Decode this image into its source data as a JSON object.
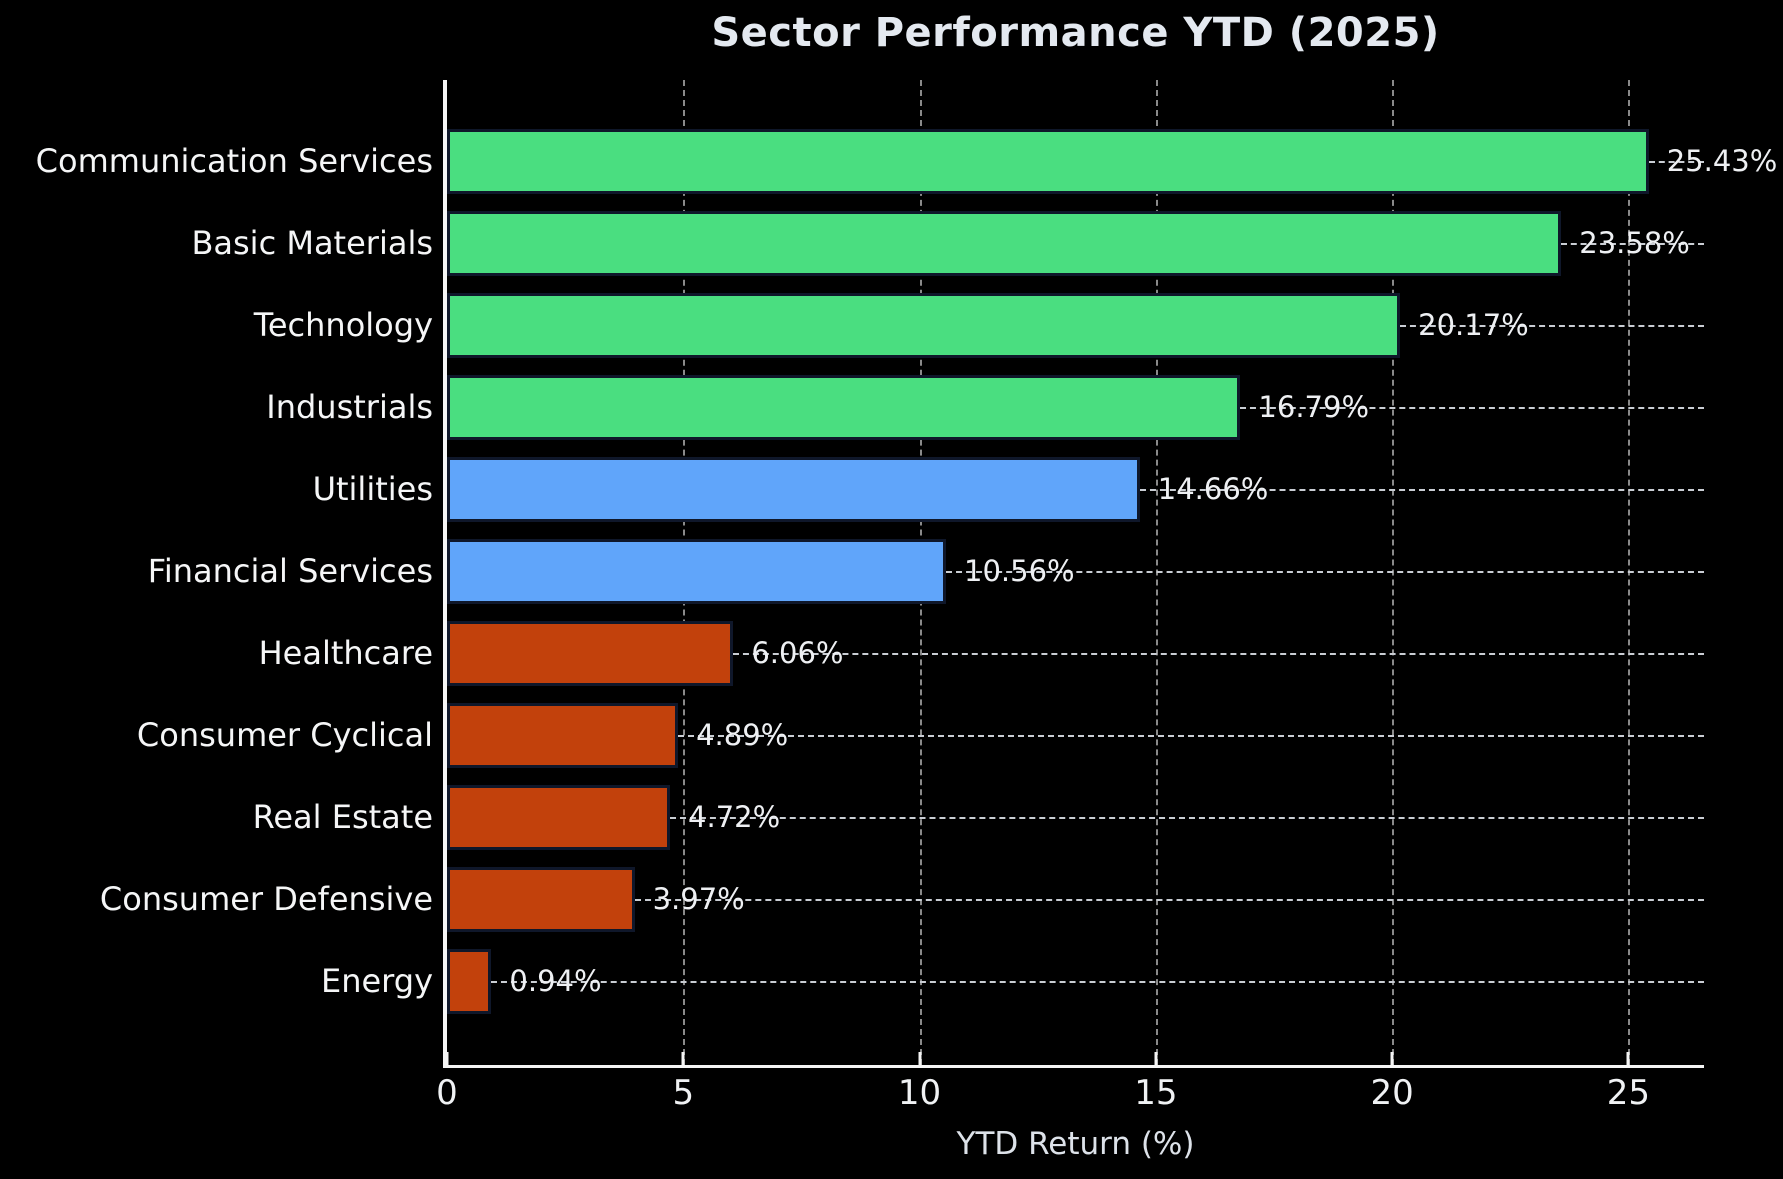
{
  "title": "Sector Performance YTD (2025)",
  "chart_data": {
    "type": "bar",
    "orientation": "horizontal",
    "title": "Sector Performance YTD (2025)",
    "xlabel": "YTD Return (%)",
    "ylabel": "",
    "xlim": [
      0,
      26.6
    ],
    "xticks": [
      0,
      5,
      10,
      15,
      20,
      25
    ],
    "grid": "vertical-dashed",
    "legend": "none",
    "categories": [
      "Communication Services",
      "Basic Materials",
      "Technology",
      "Industrials",
      "Utilities",
      "Financial Services",
      "Healthcare",
      "Consumer Cyclical",
      "Real Estate",
      "Consumer Defensive",
      "Energy"
    ],
    "values": [
      25.43,
      23.58,
      20.17,
      16.79,
      14.66,
      10.56,
      6.06,
      4.89,
      4.72,
      3.97,
      0.94
    ],
    "value_labels": [
      "25.43%",
      "23.58%",
      "20.17%",
      "16.79%",
      "14.66%",
      "10.56%",
      "6.06%",
      "4.89%",
      "4.72%",
      "3.97%",
      "0.94%"
    ],
    "bar_colors": [
      "#4ade80",
      "#4ade80",
      "#4ade80",
      "#4ade80",
      "#60a5fa",
      "#60a5fa",
      "#c2410c",
      "#c2410c",
      "#c2410c",
      "#c2410c",
      "#c2410c"
    ]
  },
  "colors": {
    "background": "#000000",
    "strong_green": "#4ade80",
    "moderate_blue": "#60a5fa",
    "weak_orange": "#c2410c",
    "bar_edge": "#0f172a",
    "grid": "#8a8a8a",
    "leader_line": "#c9cdd3",
    "spine": "#f5f5f5",
    "title_text": "#e4e9f0",
    "label_text": "#f5f6f7"
  }
}
